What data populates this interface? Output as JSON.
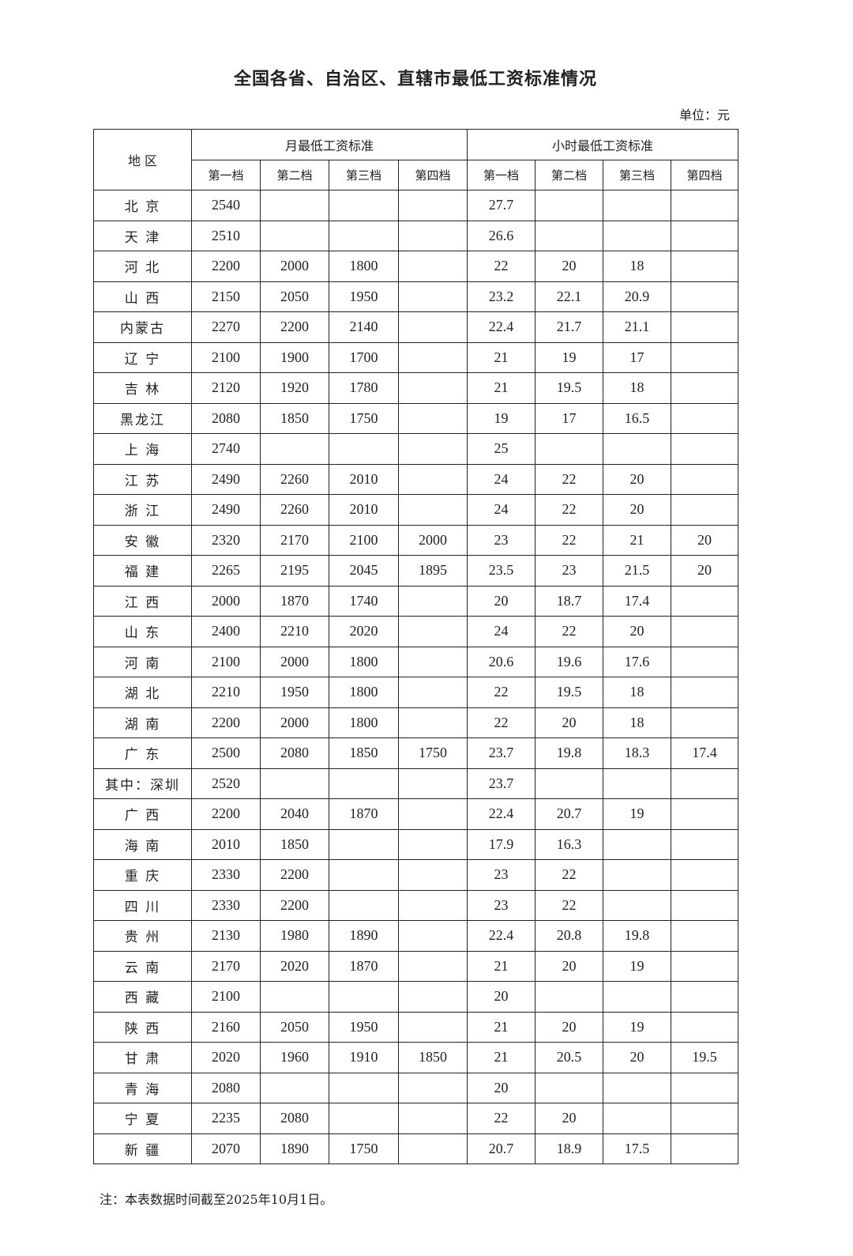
{
  "title": "全国各省、自治区、直辖市最低工资标准情况",
  "unit": "单位：元",
  "header": {
    "region": "地 区",
    "monthly": "月最低工资标准",
    "hourly": "小时最低工资标准",
    "tiers": [
      "第一档",
      "第二档",
      "第三档",
      "第四档"
    ]
  },
  "rows": [
    [
      "北 京",
      "2540",
      "",
      "",
      "",
      "27.7",
      "",
      "",
      ""
    ],
    [
      "天 津",
      "2510",
      "",
      "",
      "",
      "26.6",
      "",
      "",
      ""
    ],
    [
      "河 北",
      "2200",
      "2000",
      "1800",
      "",
      "22",
      "20",
      "18",
      ""
    ],
    [
      "山 西",
      "2150",
      "2050",
      "1950",
      "",
      "23.2",
      "22.1",
      "20.9",
      ""
    ],
    [
      "内蒙古",
      "2270",
      "2200",
      "2140",
      "",
      "22.4",
      "21.7",
      "21.1",
      ""
    ],
    [
      "辽 宁",
      "2100",
      "1900",
      "1700",
      "",
      "21",
      "19",
      "17",
      ""
    ],
    [
      "吉 林",
      "2120",
      "1920",
      "1780",
      "",
      "21",
      "19.5",
      "18",
      ""
    ],
    [
      "黑龙江",
      "2080",
      "1850",
      "1750",
      "",
      "19",
      "17",
      "16.5",
      ""
    ],
    [
      "上 海",
      "2740",
      "",
      "",
      "",
      "25",
      "",
      "",
      ""
    ],
    [
      "江 苏",
      "2490",
      "2260",
      "2010",
      "",
      "24",
      "22",
      "20",
      ""
    ],
    [
      "浙 江",
      "2490",
      "2260",
      "2010",
      "",
      "24",
      "22",
      "20",
      ""
    ],
    [
      "安 徽",
      "2320",
      "2170",
      "2100",
      "2000",
      "23",
      "22",
      "21",
      "20"
    ],
    [
      "福 建",
      "2265",
      "2195",
      "2045",
      "1895",
      "23.5",
      "23",
      "21.5",
      "20"
    ],
    [
      "江 西",
      "2000",
      "1870",
      "1740",
      "",
      "20",
      "18.7",
      "17.4",
      ""
    ],
    [
      "山 东",
      "2400",
      "2210",
      "2020",
      "",
      "24",
      "22",
      "20",
      ""
    ],
    [
      "河 南",
      "2100",
      "2000",
      "1800",
      "",
      "20.6",
      "19.6",
      "17.6",
      ""
    ],
    [
      "湖 北",
      "2210",
      "1950",
      "1800",
      "",
      "22",
      "19.5",
      "18",
      ""
    ],
    [
      "湖 南",
      "2200",
      "2000",
      "1800",
      "",
      "22",
      "20",
      "18",
      ""
    ],
    [
      "广 东",
      "2500",
      "2080",
      "1850",
      "1750",
      "23.7",
      "19.8",
      "18.3",
      "17.4"
    ],
    [
      "其中：深圳",
      "2520",
      "",
      "",
      "",
      "23.7",
      "",
      "",
      ""
    ],
    [
      "广 西",
      "2200",
      "2040",
      "1870",
      "",
      "22.4",
      "20.7",
      "19",
      ""
    ],
    [
      "海 南",
      "2010",
      "1850",
      "",
      "",
      "17.9",
      "16.3",
      "",
      ""
    ],
    [
      "重 庆",
      "2330",
      "2200",
      "",
      "",
      "23",
      "22",
      "",
      ""
    ],
    [
      "四 川",
      "2330",
      "2200",
      "",
      "",
      "23",
      "22",
      "",
      ""
    ],
    [
      "贵 州",
      "2130",
      "1980",
      "1890",
      "",
      "22.4",
      "20.8",
      "19.8",
      ""
    ],
    [
      "云 南",
      "2170",
      "2020",
      "1870",
      "",
      "21",
      "20",
      "19",
      ""
    ],
    [
      "西 藏",
      "2100",
      "",
      "",
      "",
      "20",
      "",
      "",
      ""
    ],
    [
      "陕 西",
      "2160",
      "2050",
      "1950",
      "",
      "21",
      "20",
      "19",
      ""
    ],
    [
      "甘 肃",
      "2020",
      "1960",
      "1910",
      "1850",
      "21",
      "20.5",
      "20",
      "19.5"
    ],
    [
      "青 海",
      "2080",
      "",
      "",
      "",
      "20",
      "",
      "",
      ""
    ],
    [
      "宁 夏",
      "2235",
      "2080",
      "",
      "",
      "22",
      "20",
      "",
      ""
    ],
    [
      "新 疆",
      "2070",
      "1890",
      "1750",
      "",
      "20.7",
      "18.9",
      "17.5",
      ""
    ]
  ],
  "note": "注：本表数据时间截至2025年10月1日。"
}
